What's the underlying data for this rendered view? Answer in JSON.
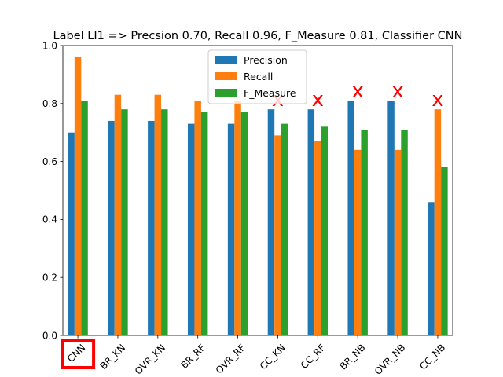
{
  "chart_data": {
    "type": "bar",
    "title": "Label LI1 => Precsion 0.70, Recall 0.96, F_Measure 0.81, Classifier CNN",
    "xlabel": "",
    "ylabel": "",
    "ylim": [
      0,
      1.0
    ],
    "yticks": [
      "0.0",
      "0.2",
      "0.4",
      "0.6",
      "0.8",
      "1.0"
    ],
    "categories": [
      "CNN",
      "BR_KN",
      "OVR_KN",
      "BR_RF",
      "OVR_RF",
      "CC_KN",
      "CC_RF",
      "BR_NB",
      "OVR_NB",
      "CC_NB"
    ],
    "series": [
      {
        "name": "Precision",
        "color": "#1f77b4",
        "values": [
          0.7,
          0.74,
          0.74,
          0.73,
          0.73,
          0.78,
          0.78,
          0.81,
          0.81,
          0.46
        ]
      },
      {
        "name": "Recall",
        "color": "#ff7f0e",
        "values": [
          0.96,
          0.83,
          0.83,
          0.81,
          0.81,
          0.69,
          0.67,
          0.64,
          0.64,
          0.78
        ]
      },
      {
        "name": "F_Measure",
        "color": "#2ca02c",
        "values": [
          0.81,
          0.78,
          0.78,
          0.77,
          0.77,
          0.73,
          0.72,
          0.71,
          0.71,
          0.58
        ]
      }
    ],
    "legend_position": "top-center",
    "grid": false,
    "highlighted_category": "CNN",
    "highlight_color": "#ff0000",
    "rejected_marker": "x",
    "rejected_categories": [
      "CC_KN",
      "CC_RF",
      "BR_NB",
      "OVR_NB",
      "CC_NB"
    ],
    "rejected_color": "#ff0000"
  }
}
